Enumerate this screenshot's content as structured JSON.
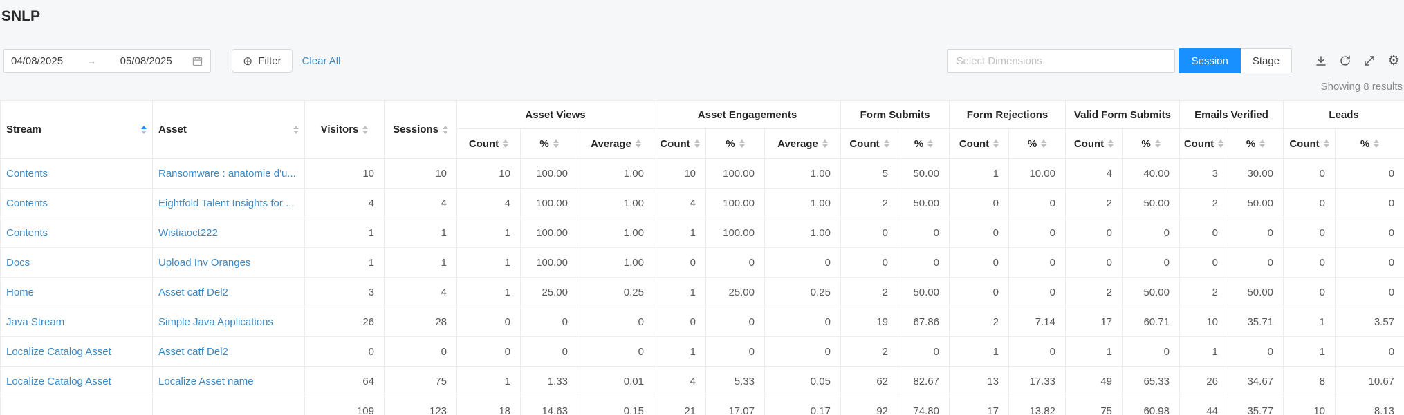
{
  "page": {
    "title": "SNLP",
    "results_note": "Showing 8 results"
  },
  "toolbar": {
    "date_from": "04/08/2025",
    "date_to": "05/08/2025",
    "filter_label": "Filter",
    "clear_all_label": "Clear All",
    "dimensions_placeholder": "Select Dimensions",
    "view_toggle": {
      "options": [
        "Session",
        "Stage"
      ],
      "active": "Session"
    }
  },
  "icons": {
    "date_arrow": "→",
    "filter_plus": "⊕",
    "gear": "⚙",
    "toolbar_icon_names": [
      "download-icon",
      "refresh-icon",
      "fullscreen-icon",
      "settings-icon"
    ]
  },
  "colors": {
    "accent": "#1890ff",
    "link": "#3c89c6",
    "topbar_bg": "#f6f7f8",
    "border": "#ececec"
  },
  "table": {
    "plain_columns": [
      {
        "key": "stream",
        "label": "Stream",
        "sorted": "asc"
      },
      {
        "key": "asset",
        "label": "Asset",
        "sorted": "none"
      },
      {
        "key": "visitors",
        "label": "Visitors",
        "sorted": "none"
      },
      {
        "key": "sessions",
        "label": "Sessions",
        "sorted": "none"
      }
    ],
    "groups": [
      {
        "label": "Asset Views",
        "columns": [
          "Count",
          "%",
          "Average"
        ]
      },
      {
        "label": "Asset Engagements",
        "columns": [
          "Count",
          "%",
          "Average"
        ]
      },
      {
        "label": "Form Submits",
        "columns": [
          "Count",
          "%"
        ]
      },
      {
        "label": "Form Rejections",
        "columns": [
          "Count",
          "%"
        ]
      },
      {
        "label": "Valid Form Submits",
        "columns": [
          "Count",
          "%"
        ]
      },
      {
        "label": "Emails Verified",
        "columns": [
          "Count",
          "%"
        ]
      },
      {
        "label": "Leads",
        "columns": [
          "Count",
          "%"
        ]
      }
    ],
    "rows": [
      {
        "stream": "Contents",
        "asset": "Ransomware : anatomie d'u...",
        "values": [
          "10",
          "10",
          "10",
          "100.00",
          "1.00",
          "10",
          "100.00",
          "1.00",
          "5",
          "50.00",
          "1",
          "10.00",
          "4",
          "40.00",
          "3",
          "30.00",
          "0",
          "0"
        ]
      },
      {
        "stream": "Contents",
        "asset": "Eightfold Talent Insights for ...",
        "values": [
          "4",
          "4",
          "4",
          "100.00",
          "1.00",
          "4",
          "100.00",
          "1.00",
          "2",
          "50.00",
          "0",
          "0",
          "2",
          "50.00",
          "2",
          "50.00",
          "0",
          "0"
        ]
      },
      {
        "stream": "Contents",
        "asset": "Wistiaoct222",
        "values": [
          "1",
          "1",
          "1",
          "100.00",
          "1.00",
          "1",
          "100.00",
          "1.00",
          "0",
          "0",
          "0",
          "0",
          "0",
          "0",
          "0",
          "0",
          "0",
          "0"
        ]
      },
      {
        "stream": "Docs",
        "asset": "Upload Inv Oranges",
        "values": [
          "1",
          "1",
          "1",
          "100.00",
          "1.00",
          "0",
          "0",
          "0",
          "0",
          "0",
          "0",
          "0",
          "0",
          "0",
          "0",
          "0",
          "0",
          "0"
        ]
      },
      {
        "stream": "Home",
        "asset": "Asset catf Del2",
        "values": [
          "3",
          "4",
          "1",
          "25.00",
          "0.25",
          "1",
          "25.00",
          "0.25",
          "2",
          "50.00",
          "0",
          "0",
          "2",
          "50.00",
          "2",
          "50.00",
          "0",
          "0"
        ]
      },
      {
        "stream": "Java Stream",
        "asset": "Simple Java Applications",
        "values": [
          "26",
          "28",
          "0",
          "0",
          "0",
          "0",
          "0",
          "0",
          "19",
          "67.86",
          "2",
          "7.14",
          "17",
          "60.71",
          "10",
          "35.71",
          "1",
          "3.57"
        ]
      },
      {
        "stream": "Localize Catalog Asset",
        "asset": "Asset catf Del2",
        "values": [
          "0",
          "0",
          "0",
          "0",
          "0",
          "1",
          "0",
          "0",
          "2",
          "0",
          "1",
          "0",
          "1",
          "0",
          "1",
          "0",
          "1",
          "0"
        ]
      },
      {
        "stream": "Localize Catalog Asset",
        "asset": "Localize Asset name",
        "values": [
          "64",
          "75",
          "1",
          "1.33",
          "0.01",
          "4",
          "5.33",
          "0.05",
          "62",
          "82.67",
          "13",
          "17.33",
          "49",
          "65.33",
          "26",
          "34.67",
          "8",
          "10.67"
        ]
      }
    ],
    "totals": {
      "values": [
        "109",
        "123",
        "18",
        "14.63",
        "0.15",
        "21",
        "17.07",
        "0.17",
        "92",
        "74.80",
        "17",
        "13.82",
        "75",
        "60.98",
        "44",
        "35.77",
        "10",
        "8.13"
      ]
    }
  }
}
